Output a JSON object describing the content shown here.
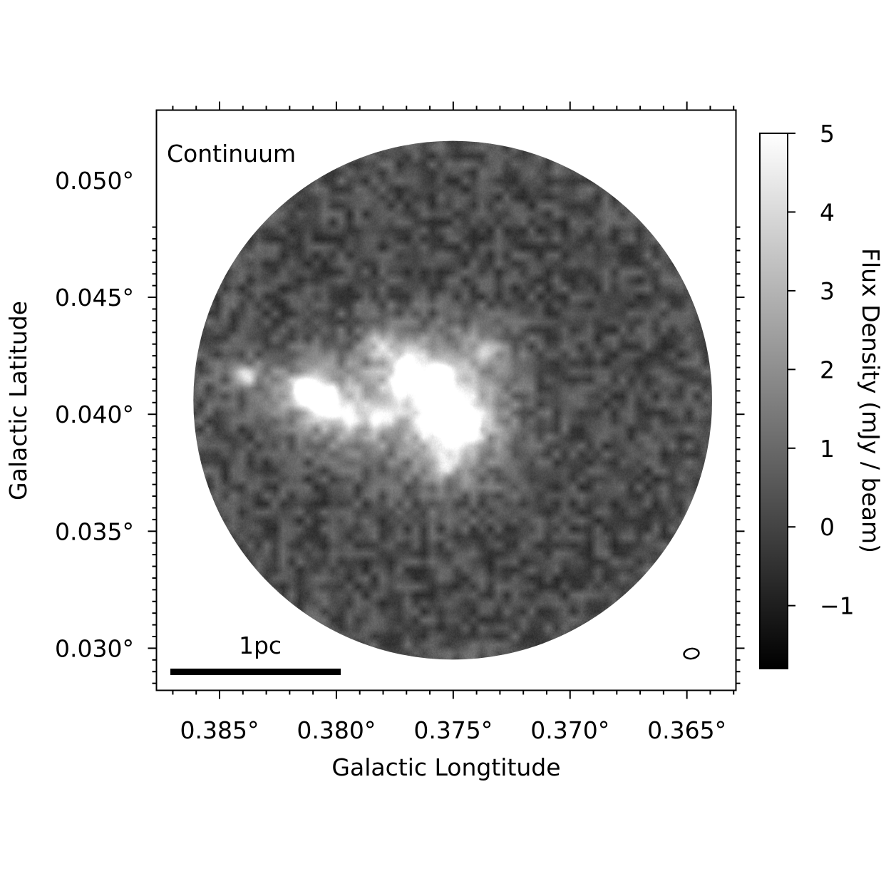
{
  "chart_data": {
    "type": "heatmap",
    "panel_label": "Continuum",
    "xlabel": "Galactic Longtitude",
    "ylabel": "Galactic Latitude",
    "x_ticks": [
      0.385,
      0.38,
      0.375,
      0.37,
      0.365
    ],
    "x_tick_labels": [
      "0.385°",
      "0.380°",
      "0.375°",
      "0.370°",
      "0.365°"
    ],
    "y_ticks": [
      0.05,
      0.045,
      0.04,
      0.035,
      0.03
    ],
    "y_tick_labels": [
      "0.050°",
      "0.045°",
      "0.040°",
      "0.035°",
      "0.030°"
    ],
    "xlim": [
      0.3877,
      0.3629
    ],
    "ylim": [
      0.0282,
      0.053
    ],
    "colormap": "gray",
    "colorbar": {
      "label": "Flux Density (mJy / beam)",
      "ticks": [
        5,
        4,
        3,
        2,
        1,
        0,
        -1
      ],
      "tick_labels": [
        "5",
        "4",
        "3",
        "2",
        "1",
        "0",
        "−1"
      ],
      "range": [
        -1.8,
        5.0
      ]
    },
    "field": {
      "center_l": 0.37502,
      "center_b": 0.0406,
      "radius_deg": 0.0111
    },
    "sources": [
      {
        "l": 0.37535,
        "b": 0.04,
        "peak": 5.0,
        "size_deg": 0.0008
      },
      {
        "l": 0.3746,
        "b": 0.0396,
        "peak": 4.5,
        "size_deg": 0.00045
      },
      {
        "l": 0.38055,
        "b": 0.0406,
        "peak": 5.0,
        "size_deg": 0.00042
      },
      {
        "l": 0.3814,
        "b": 0.041,
        "peak": 4.6,
        "size_deg": 0.00035
      },
      {
        "l": 0.3756,
        "b": 0.0417,
        "peak": 4.2,
        "size_deg": 0.00035
      },
      {
        "l": 0.37695,
        "b": 0.042,
        "peak": 3.2,
        "size_deg": 0.00035
      },
      {
        "l": 0.37725,
        "b": 0.0412,
        "peak": 2.8,
        "size_deg": 0.0003
      },
      {
        "l": 0.3839,
        "b": 0.0416,
        "peak": 2.8,
        "size_deg": 0.00035
      },
      {
        "l": 0.37355,
        "b": 0.0428,
        "peak": 2.4,
        "size_deg": 0.00035
      },
      {
        "l": 0.3781,
        "b": 0.043,
        "peak": 2.2,
        "size_deg": 0.0004
      },
      {
        "l": 0.3782,
        "b": 0.0399,
        "peak": 2.5,
        "size_deg": 0.0004
      },
      {
        "l": 0.3795,
        "b": 0.0399,
        "peak": 2.0,
        "size_deg": 0.00045
      },
      {
        "l": 0.3753,
        "b": 0.0379,
        "peak": 2.0,
        "size_deg": 0.0003
      }
    ],
    "scale_bar": {
      "label": "1pc"
    },
    "beam_label": ""
  }
}
